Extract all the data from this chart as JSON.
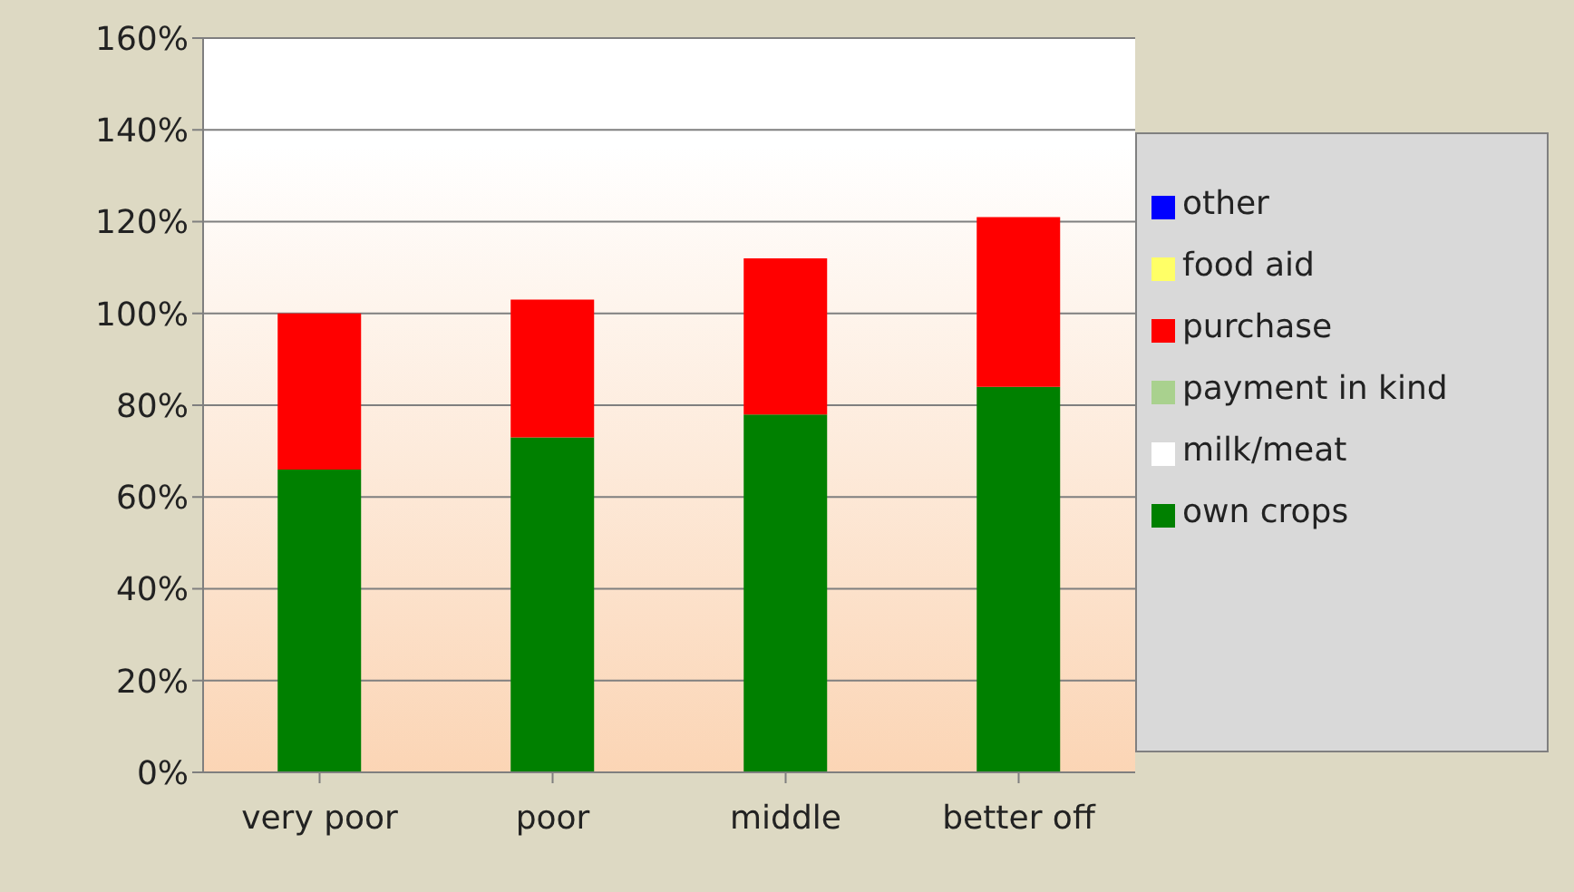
{
  "chart_data": {
    "type": "bar",
    "stacked": true,
    "categories": [
      "very poor",
      "poor",
      "middle",
      "better off"
    ],
    "series": [
      {
        "name": "own crops",
        "color": "#008000",
        "values": [
          66,
          73,
          78,
          84
        ]
      },
      {
        "name": "milk/meat",
        "color": "#ffffff",
        "values": [
          0,
          0,
          0,
          0
        ]
      },
      {
        "name": "payment in kind",
        "color": "#a9d18e",
        "values": [
          0,
          0,
          0,
          0
        ]
      },
      {
        "name": "purchase",
        "color": "#ff0000",
        "values": [
          34,
          30,
          34,
          37
        ]
      },
      {
        "name": "food aid",
        "color": "#ffff66",
        "values": [
          0,
          0,
          0,
          0
        ]
      },
      {
        "name": "other",
        "color": "#0000ff",
        "values": [
          0,
          0,
          0,
          0
        ]
      }
    ],
    "ylim": [
      0,
      160
    ],
    "yticks": [
      {
        "value": 0,
        "label": "0%"
      },
      {
        "value": 20,
        "label": "20%"
      },
      {
        "value": 40,
        "label": "40%"
      },
      {
        "value": 60,
        "label": "60%"
      },
      {
        "value": 80,
        "label": "80%"
      },
      {
        "value": 100,
        "label": "100%"
      },
      {
        "value": 120,
        "label": "120%"
      },
      {
        "value": 140,
        "label": "140%"
      },
      {
        "value": 160,
        "label": "160%"
      }
    ],
    "grid": "y",
    "legend": "right"
  }
}
